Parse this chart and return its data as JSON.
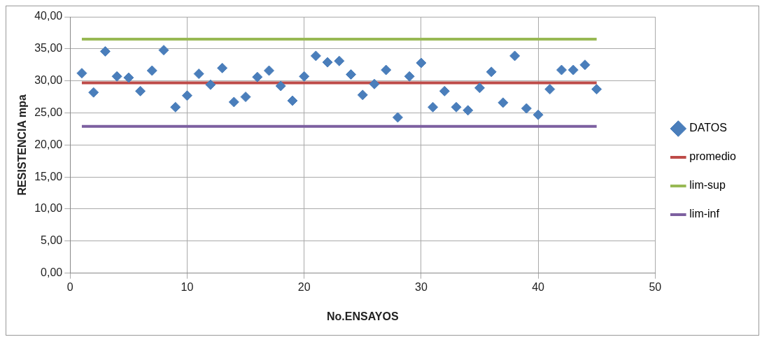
{
  "chart_data": {
    "type": "scatter",
    "xlabel": "No.ENSAYOS",
    "ylabel": "RESISTENCIA mpa",
    "xlim": [
      0,
      50
    ],
    "xticks": [
      0,
      10,
      20,
      30,
      40,
      50
    ],
    "ylim": [
      0,
      40
    ],
    "yticks": [
      {
        "value": 0,
        "label": "0,00"
      },
      {
        "value": 5,
        "label": "5,00"
      },
      {
        "value": 10,
        "label": "10,00"
      },
      {
        "value": 15,
        "label": "15,00"
      },
      {
        "value": 20,
        "label": "20,00"
      },
      {
        "value": 25,
        "label": "25,00"
      },
      {
        "value": 30,
        "label": "30,00"
      },
      {
        "value": 35,
        "label": "35,00"
      },
      {
        "value": 40,
        "label": "40,00"
      }
    ],
    "grid": true,
    "legend": "right",
    "series": [
      {
        "name": "DATOS",
        "type": "scatter",
        "marker": "diamond",
        "color": "#4a7ebb",
        "x": [
          1,
          2,
          3,
          4,
          5,
          6,
          7,
          8,
          9,
          10,
          11,
          12,
          13,
          14,
          15,
          16,
          17,
          18,
          19,
          20,
          21,
          22,
          23,
          24,
          25,
          26,
          27,
          28,
          29,
          30,
          31,
          32,
          33,
          34,
          35,
          36,
          37,
          38,
          39,
          40,
          41,
          42,
          43,
          44,
          45
        ],
        "values": [
          31.2,
          28.2,
          34.6,
          30.7,
          30.5,
          28.4,
          31.6,
          34.8,
          25.9,
          27.7,
          31.1,
          29.4,
          32.0,
          26.7,
          27.5,
          30.6,
          31.6,
          29.2,
          26.9,
          30.7,
          33.9,
          32.9,
          33.1,
          31.0,
          27.8,
          29.5,
          31.7,
          24.3,
          30.7,
          32.8,
          25.9,
          28.4,
          25.9,
          25.4,
          28.9,
          31.4,
          26.6,
          33.9,
          25.7,
          24.7,
          28.7,
          31.7,
          31.7,
          32.5,
          28.7
        ]
      },
      {
        "name": "promedio",
        "type": "line",
        "marker": "none",
        "color": "#be4b48",
        "x": [
          1,
          45
        ],
        "values": [
          29.7,
          29.7
        ]
      },
      {
        "name": "lim-sup",
        "type": "line",
        "marker": "none",
        "color": "#98b954",
        "x": [
          1,
          45
        ],
        "values": [
          36.5,
          36.5
        ]
      },
      {
        "name": "lim-inf",
        "type": "line",
        "marker": "none",
        "color": "#7d60a0",
        "x": [
          1,
          45
        ],
        "values": [
          22.9,
          22.9
        ]
      }
    ]
  }
}
